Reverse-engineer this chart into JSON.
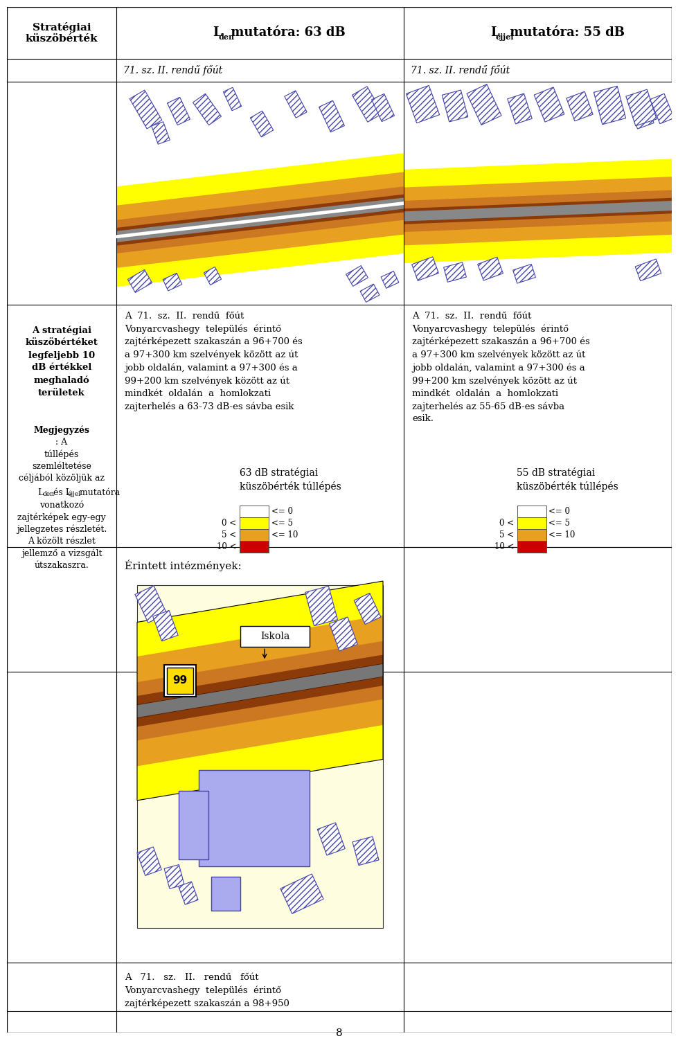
{
  "c0": 0,
  "c1": 158,
  "c2": 158,
  "c3": 573,
  "c4": 960,
  "r0": 0,
  "r1": 75,
  "r2": 108,
  "r3": 430,
  "r4": 780,
  "r5": 960,
  "r6": 1380,
  "r7": 1450,
  "r8": 1481,
  "header_col1": "Stratégiai\nküszöbérték",
  "header_col2_L": "L",
  "header_col2_sub": "den",
  "header_col2_rest": " mutatóra: 63 dB",
  "header_col3_L": "L",
  "header_col3_sub": "éjjel",
  "header_col3_rest": " mutatóra: 55 dB",
  "road_label": "71. sz. II. rendű főút",
  "left_bold": "A stratégiai\nküszöbértéket\nlegfeljebb 10\ndB értékkel\nmeghaladó\nterületek",
  "note_bold": "Megjegyzés",
  "note_rest": ": A\ntúllépés\nszemléltetése\ncéljából közöljük az",
  "note_sub_line": "den és L",
  "note_sub_line2": "éjjel",
  "note_after_sub": " mutatóra",
  "note_final": "vonatkozó\nzajtérképek egy-egy\njellegzetes részletét.\nA közölt részlet\njellemző a vizsgált\nútszakaszra.",
  "mid_para": "A  71.  sz.  II.  rendű  főút\nVonyarcvashegy  település  érintő\nzajtérképezett szakaszán a 96+700 és\na 97+300 km szelvények között az út\njobb oldalán, valamint a 97+300 és a\n99+200 km szelvények között az út\nmindkét  oldalán  a  homlokzati\nzajterhelés a 63-73 dB-es sávba esik",
  "right_para": "A  71.  sz.  II.  rendű  főút\nVonyarcvashegy  település  érintő\nzajtérképezett szakaszán a 96+700 és\na 97+300 km szelvények között az út\njobb oldalán, valamint a 97+300 és a\n99+200 km szelvények között az út\nmindkét  oldalán  a  homlokzati\nzajterhelés az 55-65 dB-es sávba\nesik.",
  "leg_title_mid": "63 dB stratégiai\nküszöbérték túllépés",
  "leg_title_right": "55 dB stratégiai\nküszöbérték túllépés",
  "legend_colors": [
    "#FFFFFF",
    "#FFFF00",
    "#E8A020",
    "#CC0000"
  ],
  "legend_prefixes": [
    "",
    "0 <",
    "5 <",
    "10 <"
  ],
  "legend_labels": [
    "<= 0",
    "<= 5",
    "<= 10",
    ""
  ],
  "footer_label": "Érintett intézmények:",
  "iskola_label": "Iskola",
  "road_num": "99",
  "bottom_text": "A   71.   sz.   II.   rendű   főút\nVonyarcvashegy  település  érintő\nzajtérképezett szakaszán a 98+950",
  "page_num": "8"
}
